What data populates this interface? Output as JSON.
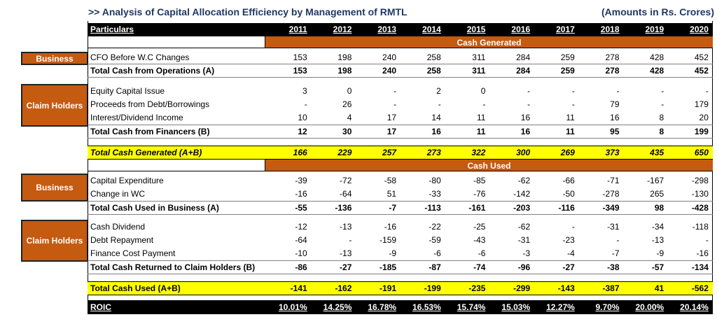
{
  "title": ">> Analysis of Capital Allocation Efficiency by Management of RMTL",
  "units": "(Amounts in Rs. Crores)",
  "header": {
    "label": "Particulars",
    "years": [
      "2011",
      "2012",
      "2013",
      "2014",
      "2015",
      "2016",
      "2017",
      "2018",
      "2019",
      "2020"
    ]
  },
  "sections": {
    "cash_generated": "Cash Generated",
    "cash_used": "Cash Used"
  },
  "categories": {
    "business_1": "Business",
    "claim_holders_1": "Claim Holders",
    "business_2": "Business",
    "claim_holders_2": "Claim Holders"
  },
  "rows": {
    "cfo": {
      "label": "CFO Before W.C Changes",
      "values": [
        "153",
        "198",
        "240",
        "258",
        "311",
        "284",
        "259",
        "278",
        "428",
        "452"
      ]
    },
    "tcfo": {
      "label": "Total Cash from Operations (A)",
      "values": [
        "153",
        "198",
        "240",
        "258",
        "311",
        "284",
        "259",
        "278",
        "428",
        "452"
      ]
    },
    "equity": {
      "label": "Equity Capital Issue",
      "values": [
        "3",
        "0",
        "-",
        "2",
        "0",
        "-",
        "-",
        "-",
        "-",
        "-"
      ]
    },
    "debt_proceeds": {
      "label": "Proceeds from Debt/Borrowings",
      "values": [
        "-",
        "26",
        "-",
        "-",
        "-",
        "-",
        "-",
        "79",
        "-",
        "179"
      ]
    },
    "interest_income": {
      "label": "Interest/Dividend Income",
      "values": [
        "10",
        "4",
        "17",
        "14",
        "11",
        "16",
        "11",
        "16",
        "8",
        "20"
      ]
    },
    "tcff": {
      "label": "Total Cash from Financers (B)",
      "values": [
        "12",
        "30",
        "17",
        "16",
        "11",
        "16",
        "11",
        "95",
        "8",
        "199"
      ]
    },
    "tcg": {
      "label": "Total Cash Generated (A+B)",
      "values": [
        "166",
        "229",
        "257",
        "273",
        "322",
        "300",
        "269",
        "373",
        "435",
        "650"
      ]
    },
    "capex": {
      "label": "Capital Expenditure",
      "values": [
        "-39",
        "-72",
        "-58",
        "-80",
        "-85",
        "-62",
        "-66",
        "-71",
        "-167",
        "-298"
      ]
    },
    "wc": {
      "label": "Change in WC",
      "values": [
        "-16",
        "-64",
        "51",
        "-33",
        "-76",
        "-142",
        "-50",
        "-278",
        "265",
        "-130"
      ]
    },
    "tcub": {
      "label": "Total Cash Used in Business (A)",
      "values": [
        "-55",
        "-136",
        "-7",
        "-113",
        "-161",
        "-203",
        "-116",
        "-349",
        "98",
        "-428"
      ]
    },
    "dividend": {
      "label": "Cash Dividend",
      "values": [
        "-12",
        "-13",
        "-16",
        "-22",
        "-25",
        "-62",
        "-",
        "-31",
        "-34",
        "-118"
      ]
    },
    "debt_repay": {
      "label": "Debt Repayment",
      "values": [
        "-64",
        "-",
        "-159",
        "-59",
        "-43",
        "-31",
        "-23",
        "-",
        "-13",
        "-"
      ]
    },
    "finance_cost": {
      "label": "Finance Cost Payment",
      "values": [
        "-10",
        "-13",
        "-9",
        "-6",
        "-6",
        "-3",
        "-4",
        "-7",
        "-9",
        "-16"
      ]
    },
    "tcrch": {
      "label": "Total Cash Returned to Claim Holders (B)",
      "values": [
        "-86",
        "-27",
        "-185",
        "-87",
        "-74",
        "-96",
        "-27",
        "-38",
        "-57",
        "-134"
      ]
    },
    "tcu": {
      "label": "Total Cash Used (A+B)",
      "values": [
        "-141",
        "-162",
        "-191",
        "-199",
        "-235",
        "-299",
        "-143",
        "-387",
        "41",
        "-562"
      ]
    },
    "roic": {
      "label": "ROIC",
      "values": [
        "10.01%",
        "14.25%",
        "16.78%",
        "16.53%",
        "15.74%",
        "15.03%",
        "12.27%",
        "9.70%",
        "20.00%",
        "20.14%"
      ]
    }
  },
  "colors": {
    "accent": "#c55a11",
    "highlight": "#ffff00",
    "header_bg": "#000000",
    "title": "#1f3864"
  }
}
